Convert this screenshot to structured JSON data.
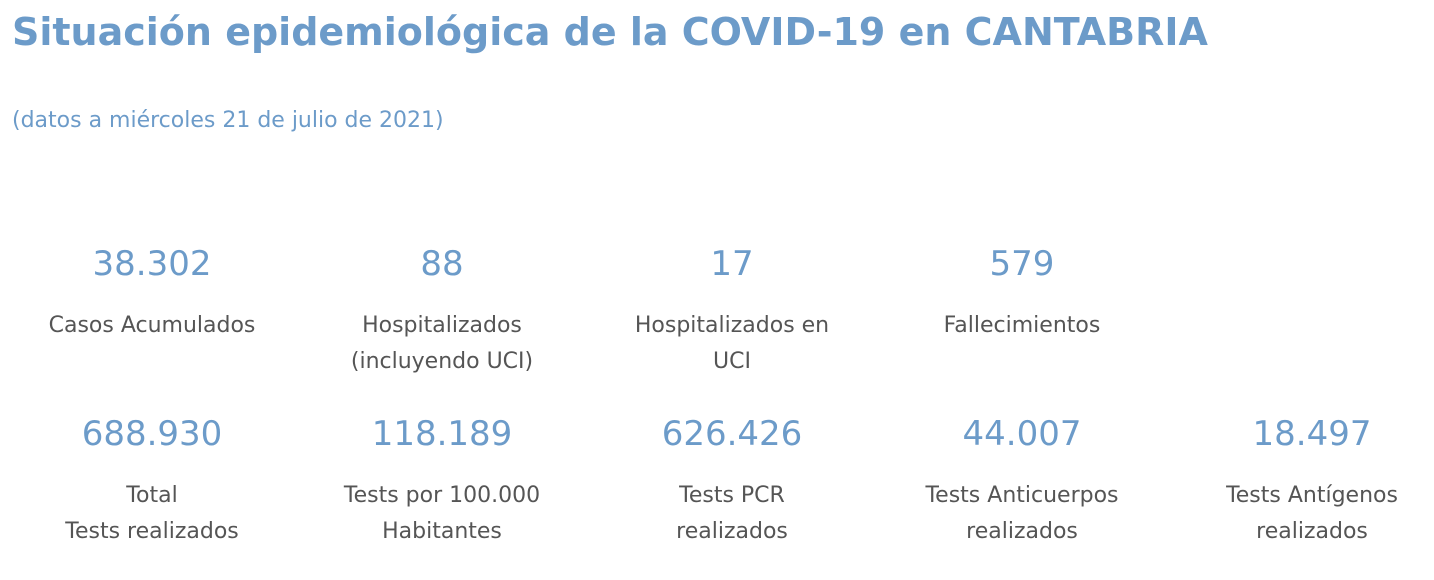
{
  "header": {
    "title": "Situación epidemiológica de la COVID-19 en CANTABRIA",
    "subtitle": "(datos a miércoles 21 de julio de 2021)"
  },
  "colors": {
    "accent": "#6c9bc9",
    "label_text": "#555555"
  },
  "stats": [
    {
      "value": "38.302",
      "label": "Casos Acumulados"
    },
    {
      "value": "88",
      "label": "Hospitalizados\n(incluyendo UCI)"
    },
    {
      "value": "17",
      "label": "Hospitalizados en\nUCI"
    },
    {
      "value": "579",
      "label": "Fallecimientos"
    },
    {
      "value": "688.930",
      "label": "Total\nTests realizados"
    },
    {
      "value": "118.189",
      "label": "Tests por 100.000\nHabitantes"
    },
    {
      "value": "626.426",
      "label": "Tests PCR\nrealizados"
    },
    {
      "value": "44.007",
      "label": "Tests Anticuerpos\nrealizados"
    },
    {
      "value": "18.497",
      "label": "Tests Antígenos\nrealizados"
    }
  ]
}
